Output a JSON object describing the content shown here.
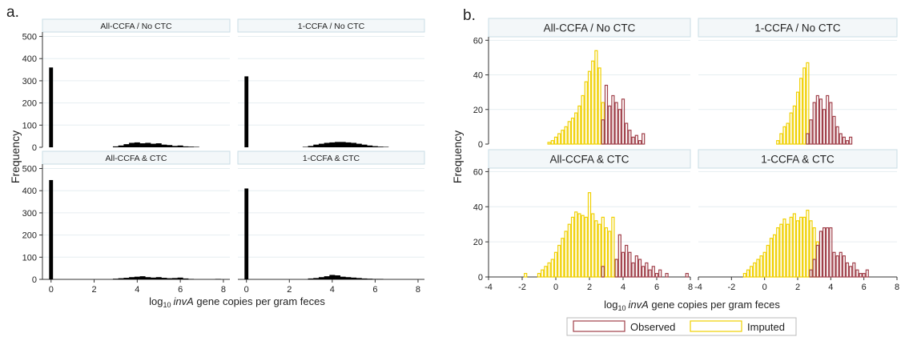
{
  "figure": {
    "panel_a_label": "a.",
    "panel_b_label": "b.",
    "ylabel": "Frequency",
    "xlabel_prefix": "log",
    "xlabel_sub": "10",
    "xlabel_gene": "invA",
    "xlabel_rest": " gene copies per gram feces"
  },
  "legend": {
    "observed_label": "Observed",
    "imputed_label": "Imputed",
    "observed_color": "#a0404a",
    "imputed_color": "#f0d000"
  },
  "chart_data": [
    {
      "type": "bar",
      "panel": "a",
      "facets": [
        "All-CCFA / No CTC",
        "1-CCFA / No CTC",
        "All-CCFA & CTC",
        "1-CCFA & CTC"
      ],
      "xlim": [
        -0.4,
        8.3
      ],
      "ylim": [
        0,
        520
      ],
      "xticks": [
        0,
        2,
        4,
        6,
        8
      ],
      "yticks": [
        0,
        100,
        200,
        300,
        400,
        500
      ],
      "bar_color": "#000000",
      "series": [
        {
          "facet": "All-CCFA / No CTC",
          "x": [
            0,
            3.0,
            3.25,
            3.5,
            3.75,
            4.0,
            4.25,
            4.5,
            4.75,
            5.0,
            5.25,
            5.5,
            5.75,
            6.0,
            6.25,
            6.5,
            6.75
          ],
          "values": [
            360,
            4,
            8,
            14,
            20,
            22,
            18,
            20,
            16,
            18,
            12,
            10,
            6,
            8,
            4,
            3,
            2
          ]
        },
        {
          "facet": "1-CCFA / No CTC",
          "x": [
            0,
            2.75,
            3.0,
            3.25,
            3.5,
            3.75,
            4.0,
            4.25,
            4.5,
            4.75,
            5.0,
            5.25,
            5.5,
            5.75,
            6.0,
            6.25,
            6.5
          ],
          "values": [
            320,
            2,
            6,
            12,
            16,
            20,
            22,
            24,
            24,
            22,
            20,
            16,
            12,
            8,
            5,
            3,
            2
          ]
        },
        {
          "facet": "All-CCFA & CTC",
          "x": [
            0,
            3.0,
            3.25,
            3.5,
            3.75,
            4.0,
            4.25,
            4.5,
            4.75,
            5.0,
            5.25,
            5.5,
            5.75,
            6.0,
            6.25,
            6.5,
            7.75
          ],
          "values": [
            448,
            3,
            5,
            7,
            10,
            12,
            14,
            10,
            8,
            10,
            7,
            5,
            6,
            8,
            4,
            2,
            2
          ]
        },
        {
          "facet": "1-CCFA & CTC",
          "x": [
            0,
            3.0,
            3.25,
            3.5,
            3.75,
            4.0,
            4.25,
            4.5,
            4.75,
            5.0,
            5.25,
            5.5,
            5.75,
            6.0,
            6.25
          ],
          "values": [
            410,
            4,
            6,
            10,
            14,
            20,
            18,
            12,
            10,
            8,
            6,
            4,
            3,
            2,
            2
          ]
        }
      ]
    },
    {
      "type": "bar",
      "panel": "b",
      "facets": [
        "All-CCFA / No CTC",
        "1-CCFA / No CTC",
        "All-CCFA & CTC",
        "1-CCFA & CTC"
      ],
      "xlim": [
        -4,
        8
      ],
      "ylim": [
        0,
        62
      ],
      "xticks": [
        -4,
        -2,
        0,
        2,
        4,
        6,
        8
      ],
      "yticks": [
        0,
        20,
        40,
        60
      ],
      "bin_width": 0.2,
      "series": [
        {
          "facet": "All-CCFA / No CTC",
          "name": "Imputed",
          "x": [
            -0.4,
            -0.2,
            0.0,
            0.2,
            0.4,
            0.6,
            0.8,
            1.0,
            1.2,
            1.4,
            1.6,
            1.8,
            2.0,
            2.2,
            2.4,
            2.6,
            2.8
          ],
          "values": [
            1,
            2,
            4,
            6,
            8,
            10,
            13,
            15,
            18,
            22,
            28,
            36,
            42,
            48,
            54,
            44,
            24
          ]
        },
        {
          "facet": "All-CCFA / No CTC",
          "name": "Observed",
          "x": [
            2.8,
            3.0,
            3.2,
            3.4,
            3.6,
            3.8,
            4.0,
            4.2,
            4.4,
            4.6,
            4.8,
            5.0,
            5.2
          ],
          "values": [
            14,
            34,
            22,
            28,
            24,
            20,
            26,
            12,
            8,
            4,
            5,
            2,
            6
          ]
        },
        {
          "facet": "1-CCFA / No CTC",
          "name": "Imputed",
          "x": [
            0.8,
            1.0,
            1.2,
            1.4,
            1.6,
            1.8,
            2.0,
            2.2,
            2.4,
            2.6
          ],
          "values": [
            2,
            6,
            10,
            12,
            18,
            22,
            30,
            38,
            44,
            47
          ]
        },
        {
          "facet": "1-CCFA / No CTC",
          "name": "Observed",
          "x": [
            2.6,
            2.8,
            3.0,
            3.2,
            3.4,
            3.6,
            3.8,
            4.0,
            4.2,
            4.4,
            4.6,
            4.8,
            5.0,
            5.2
          ],
          "values": [
            6,
            14,
            24,
            28,
            26,
            20,
            28,
            24,
            16,
            10,
            6,
            4,
            2,
            4
          ]
        },
        {
          "facet": "All-CCFA & CTC",
          "name": "Imputed",
          "x": [
            -1.8,
            -1.0,
            -0.8,
            -0.6,
            -0.4,
            -0.2,
            0.0,
            0.2,
            0.4,
            0.6,
            0.8,
            1.0,
            1.2,
            1.4,
            1.6,
            1.8,
            2.0,
            2.2,
            2.4,
            2.6,
            2.8,
            3.0,
            3.2,
            3.4,
            3.6
          ],
          "values": [
            2,
            2,
            4,
            6,
            8,
            10,
            14,
            18,
            22,
            26,
            30,
            34,
            37,
            36,
            35,
            34,
            48,
            36,
            32,
            30,
            34,
            28,
            26,
            34,
            10
          ]
        },
        {
          "facet": "All-CCFA & CTC",
          "name": "Observed",
          "x": [
            2.8,
            3.6,
            3.8,
            4.0,
            4.2,
            4.4,
            4.6,
            4.8,
            5.0,
            5.2,
            5.4,
            5.6,
            5.8,
            6.0,
            6.2,
            6.6,
            7.8
          ],
          "values": [
            6,
            10,
            24,
            14,
            18,
            14,
            8,
            12,
            10,
            6,
            8,
            4,
            6,
            2,
            4,
            2,
            2
          ]
        },
        {
          "facet": "1-CCFA & CTC",
          "name": "Imputed",
          "x": [
            -1.2,
            -1.0,
            -0.8,
            -0.6,
            -0.4,
            -0.2,
            0.0,
            0.2,
            0.4,
            0.6,
            0.8,
            1.0,
            1.2,
            1.4,
            1.6,
            1.8,
            2.0,
            2.2,
            2.4,
            2.6,
            2.8,
            3.0,
            3.2
          ],
          "values": [
            2,
            4,
            6,
            8,
            10,
            12,
            14,
            18,
            22,
            24,
            28,
            30,
            33,
            30,
            34,
            36,
            32,
            34,
            34,
            38,
            32,
            28,
            20
          ]
        },
        {
          "facet": "1-CCFA & CTC",
          "name": "Observed",
          "x": [
            2.8,
            3.0,
            3.2,
            3.4,
            3.6,
            3.8,
            4.0,
            4.2,
            4.4,
            4.6,
            4.8,
            5.0,
            5.2,
            5.4,
            5.6,
            5.8,
            6.0,
            6.2
          ],
          "values": [
            4,
            10,
            18,
            26,
            28,
            28,
            28,
            14,
            12,
            14,
            12,
            8,
            6,
            8,
            4,
            2,
            2,
            4
          ]
        }
      ]
    }
  ]
}
